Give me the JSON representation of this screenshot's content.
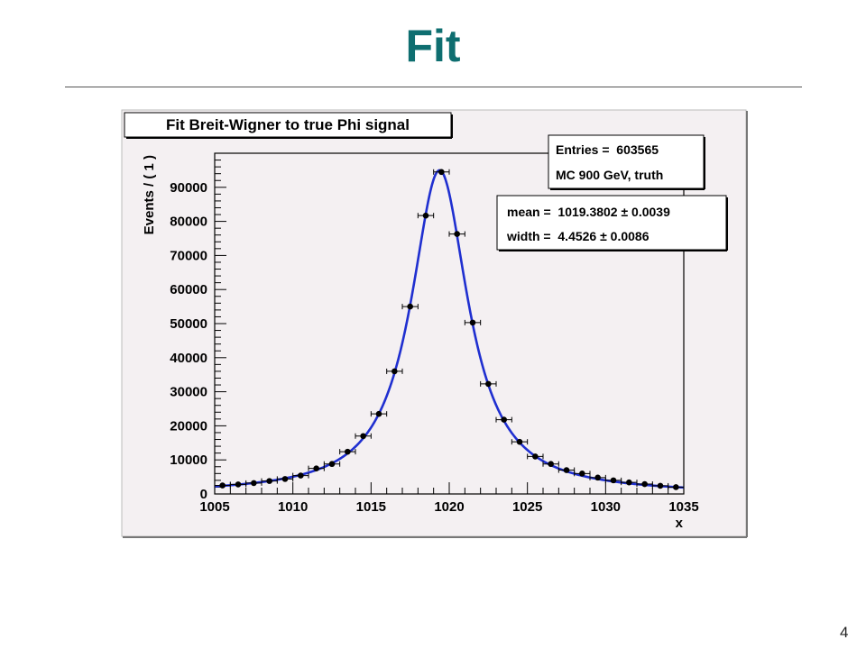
{
  "slide": {
    "title": "Fit",
    "page_number": "4"
  },
  "chart_data": {
    "type": "scatter",
    "title": "Fit Breit-Wigner to true Phi signal",
    "xlabel": "x",
    "ylabel": "Events / ( 1 )",
    "xlim": [
      1005,
      1035
    ],
    "ylim": [
      0,
      100000
    ],
    "xticks": [
      1005,
      1010,
      1015,
      1020,
      1025,
      1030,
      1035
    ],
    "yticks": [
      0,
      10000,
      20000,
      30000,
      40000,
      50000,
      60000,
      70000,
      80000,
      90000
    ],
    "grid": false,
    "stats_box": [
      "Entries =  603565",
      "MC 900 GeV, truth"
    ],
    "fit_box": [
      "mean =  1019.3802 ± 0.0039",
      "width =  4.4526 ± 0.0086"
    ],
    "fit": {
      "model": "Breit-Wigner",
      "mean": 1019.3802,
      "width": 4.4526,
      "peak": 95000,
      "color": "#1f2fd0"
    },
    "points": {
      "x": [
        1005.5,
        1006.5,
        1007.5,
        1008.5,
        1009.5,
        1010.5,
        1011.5,
        1012.5,
        1013.5,
        1014.5,
        1015.5,
        1016.5,
        1017.5,
        1018.5,
        1019.5,
        1020.5,
        1021.5,
        1022.5,
        1023.5,
        1024.5,
        1025.5,
        1026.5,
        1027.5,
        1028.5,
        1029.5,
        1030.5,
        1031.5,
        1032.5,
        1033.5,
        1034.5
      ],
      "y": [
        2500,
        2800,
        3200,
        3800,
        4400,
        5400,
        7500,
        8800,
        12400,
        17000,
        23500,
        36000,
        55000,
        81700,
        94500,
        76300,
        50300,
        32300,
        21800,
        15300,
        11000,
        8800,
        7000,
        6000,
        4800,
        4000,
        3400,
        2900,
        2400,
        2000
      ],
      "xerr": 0.5
    }
  }
}
